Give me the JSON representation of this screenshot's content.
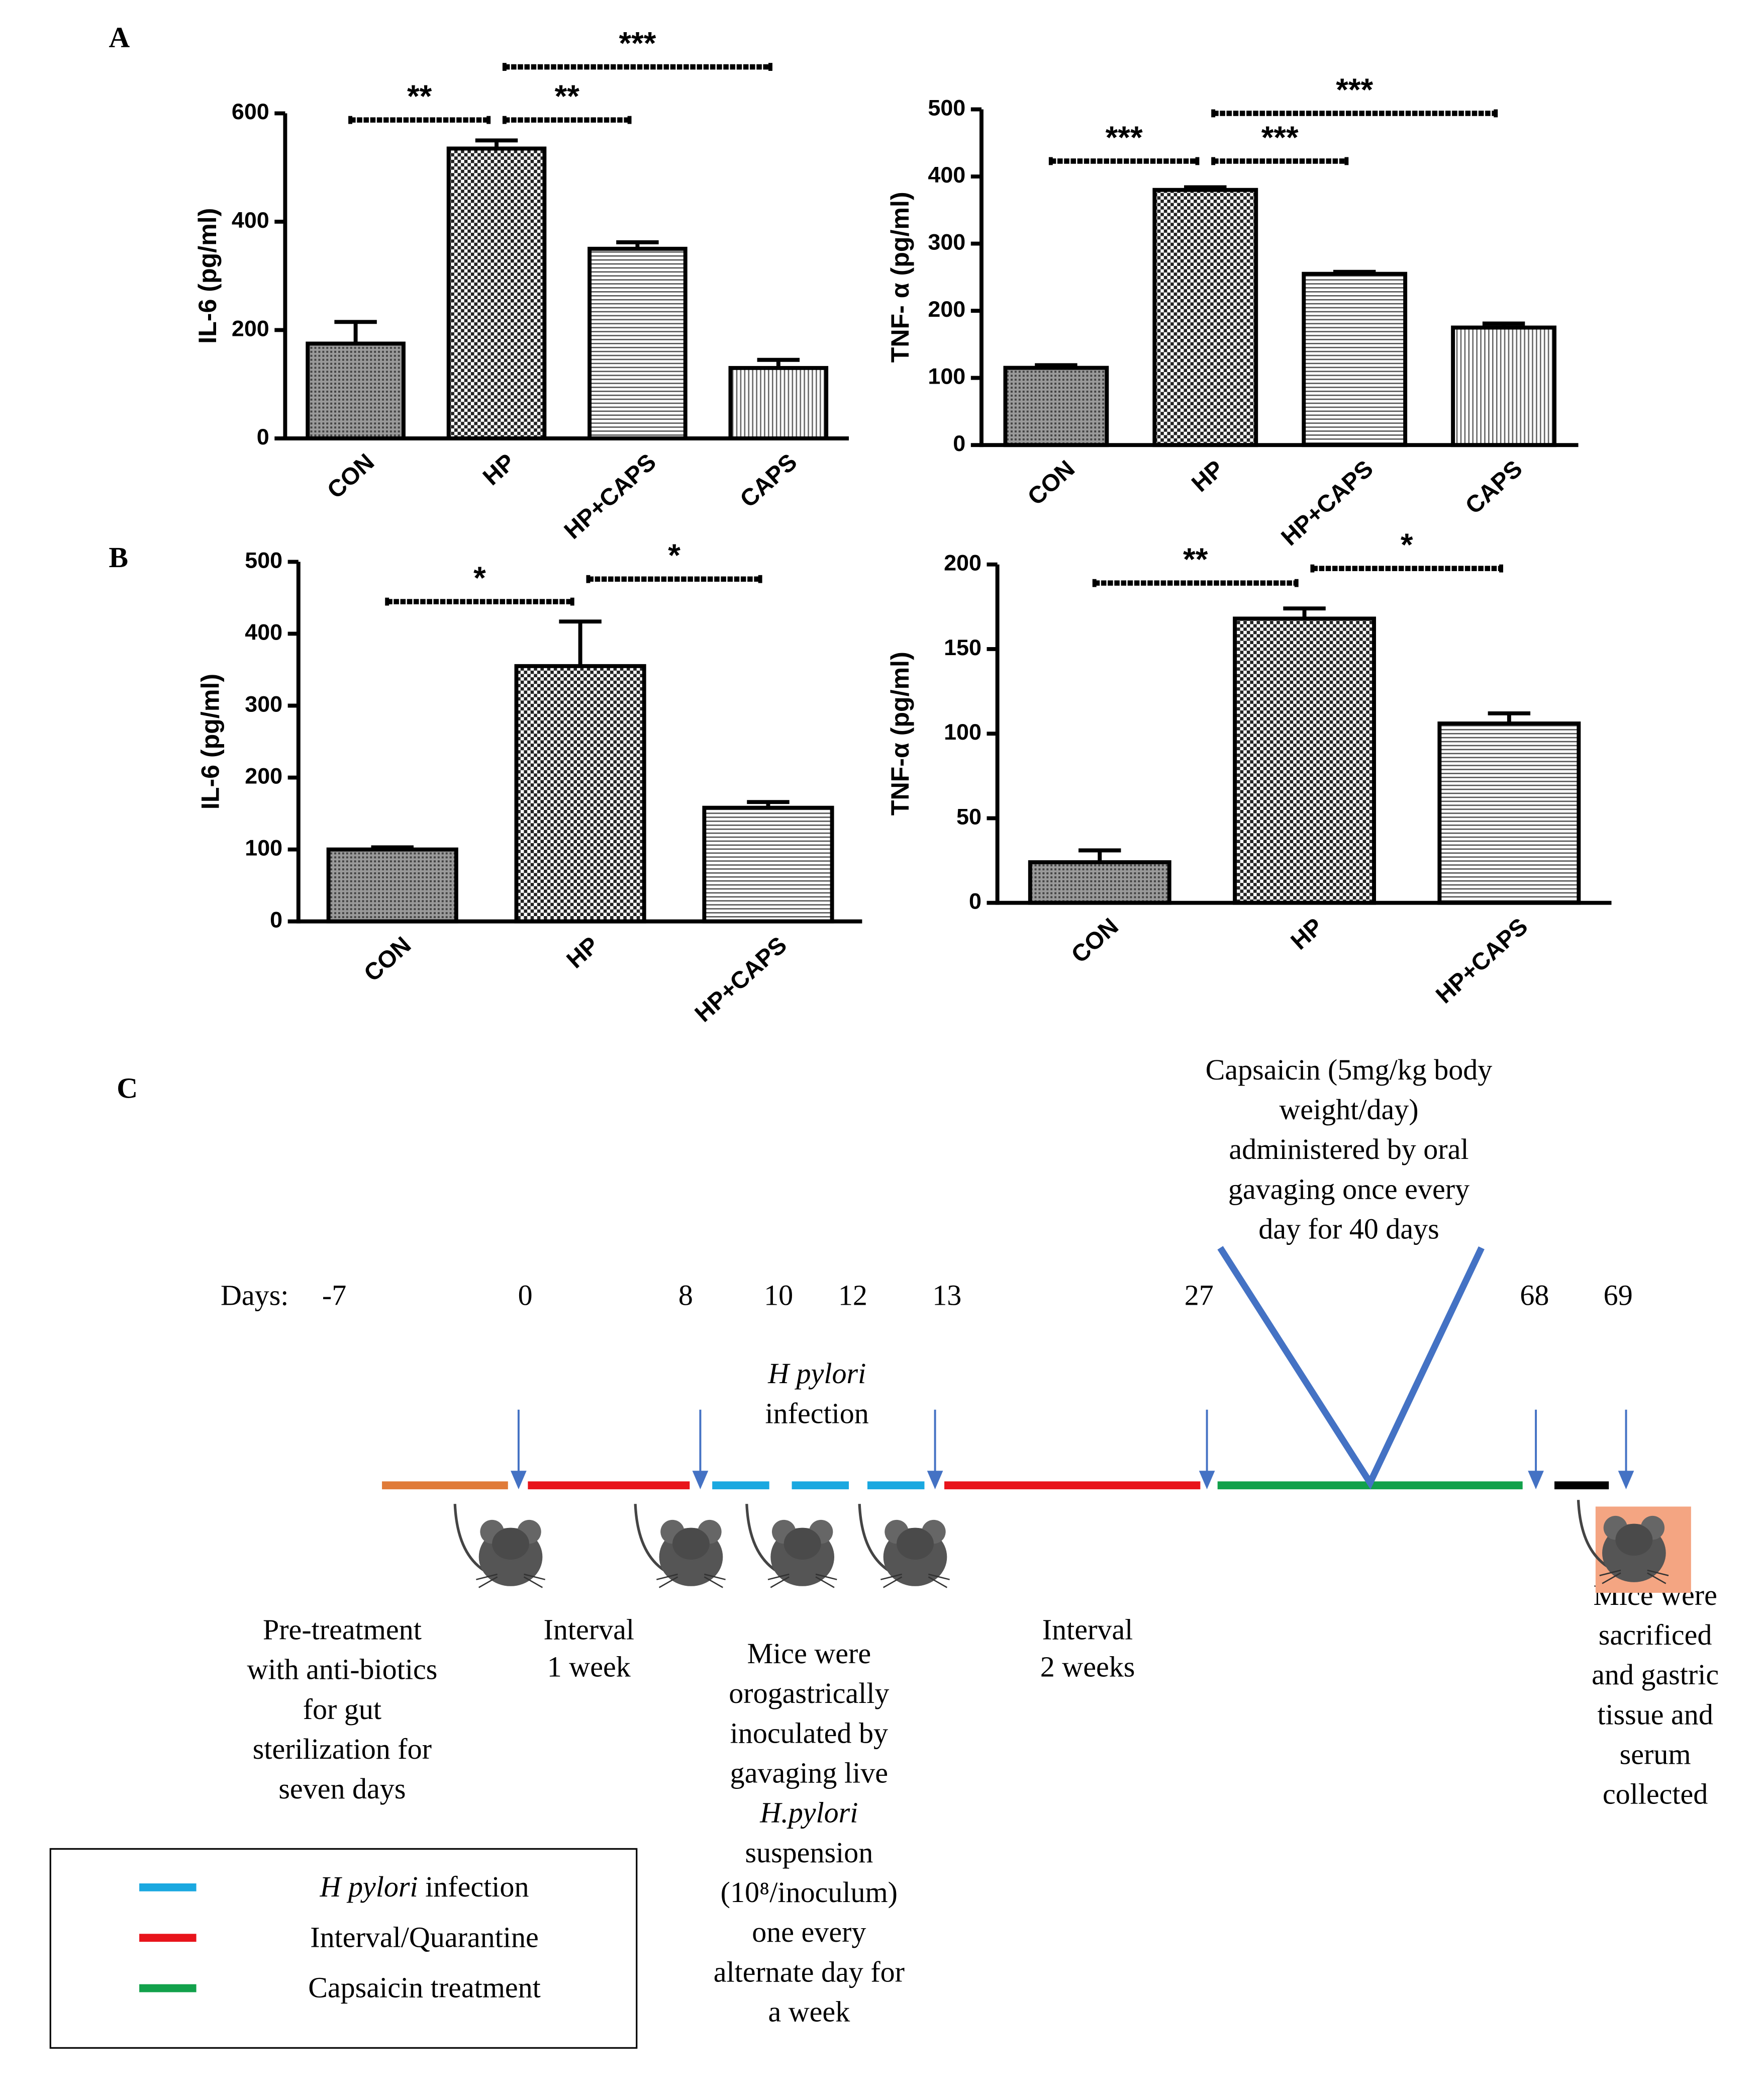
{
  "panel_labels": [
    "A",
    "B",
    "C"
  ],
  "chart_data": [
    {
      "type": "bar",
      "ylabel": "IL-6 (pg/ml)",
      "categories": [
        "CON",
        "HP",
        "HP+CAPS",
        "CAPS"
      ],
      "values": [
        175,
        535,
        350,
        130
      ],
      "errors": [
        40,
        15,
        12,
        15
      ],
      "patterns": [
        "dots",
        "checker",
        "hlines",
        "vlines"
      ],
      "ylim": [
        0,
        600
      ],
      "yticks": [
        0,
        200,
        400,
        600
      ],
      "significance": [
        {
          "label": "**",
          "from": 0,
          "to": 1
        },
        {
          "label": "**",
          "from": 1,
          "to": 2
        },
        {
          "label": "***",
          "from": 1,
          "to": 3
        }
      ]
    },
    {
      "type": "bar",
      "ylabel": "TNF- α (pg/ml)",
      "categories": [
        "CON",
        "HP",
        "HP+CAPS",
        "CAPS"
      ],
      "values": [
        115,
        380,
        255,
        175
      ],
      "errors": [
        4,
        4,
        3,
        6
      ],
      "patterns": [
        "dots",
        "checker",
        "hlines",
        "vlines"
      ],
      "ylim": [
        0,
        500
      ],
      "yticks": [
        0,
        100,
        200,
        300,
        400,
        500
      ],
      "significance": [
        {
          "label": "***",
          "from": 0,
          "to": 1
        },
        {
          "label": "***",
          "from": 1,
          "to": 2
        },
        {
          "label": "***",
          "from": 1,
          "to": 3
        }
      ]
    },
    {
      "type": "bar",
      "ylabel": "IL-6 (pg/ml)",
      "categories": [
        "CON",
        "HP",
        "HP+CAPS"
      ],
      "values": [
        100,
        355,
        158
      ],
      "errors": [
        3,
        62,
        8
      ],
      "patterns": [
        "dots",
        "checker",
        "hlines"
      ],
      "ylim": [
        0,
        500
      ],
      "yticks": [
        0,
        100,
        200,
        300,
        400,
        500
      ],
      "significance": [
        {
          "label": "*",
          "from": 0,
          "to": 1
        },
        {
          "label": "*",
          "from": 1,
          "to": 2
        }
      ]
    },
    {
      "type": "bar",
      "ylabel": "TNF-α (pg/ml)",
      "categories": [
        "CON",
        "HP",
        "HP+CAPS"
      ],
      "values": [
        24,
        168,
        106
      ],
      "errors": [
        7,
        6,
        6
      ],
      "patterns": [
        "dots",
        "checker",
        "hlines"
      ],
      "ylim": [
        0,
        200
      ],
      "yticks": [
        0,
        50,
        100,
        150,
        200
      ],
      "significance": [
        {
          "label": "**",
          "from": 0,
          "to": 1
        },
        {
          "label": "*",
          "from": 1,
          "to": 2
        }
      ]
    }
  ],
  "timeline": {
    "days_label": "Days:",
    "days": [
      -7,
      0,
      8,
      10,
      12,
      13,
      27,
      68,
      69
    ],
    "capsaicin": [
      "Capsaicin (5mg/kg body",
      "weight/day)",
      "administered by oral",
      "gavaging once every",
      "day for 40 days"
    ],
    "infection": [
      "H pylori",
      "infection"
    ],
    "blocks": [
      [
        "Pre-treatment",
        "with anti-biotics",
        "for gut",
        "sterilization for",
        "seven days"
      ],
      [
        "Interval",
        "1 week"
      ],
      [
        "Mice were",
        "orogastrically",
        "inoculated by",
        "gavaging live",
        "H.pylori",
        "suspension",
        "(10⁸/inoculum)",
        "one every",
        "alternate day for",
        "a week"
      ],
      [
        "Interval",
        "2 weeks"
      ],
      [
        "Mice were",
        "sacrificed",
        "and gastric",
        "tissue and",
        "serum",
        "collected"
      ]
    ],
    "legend": [
      {
        "label_italic": "H pylori",
        "label": "infection",
        "color": "#1aa8e0"
      },
      {
        "label": "Interval/Quarantine",
        "color": "#e8141b"
      },
      {
        "label": "Capsaicin treatment",
        "color": "#12a14b"
      }
    ]
  }
}
